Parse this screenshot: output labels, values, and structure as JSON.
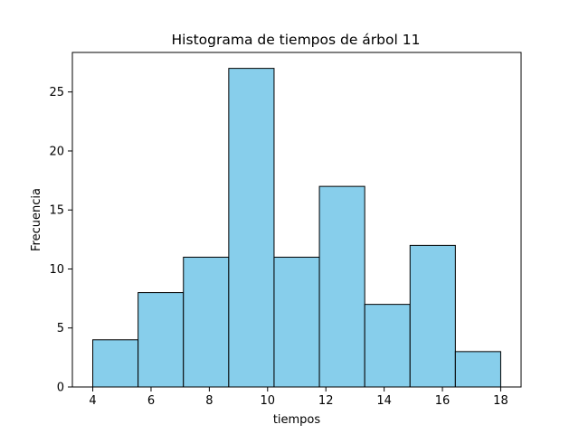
{
  "chart_data": {
    "type": "bar",
    "title": "Histograma de tiempos de árbol 11",
    "xlabel": "tiempos",
    "ylabel": "Frecuencia",
    "bin_edges": [
      4,
      5.5556,
      7.1111,
      8.6667,
      10.2222,
      11.7778,
      13.3333,
      14.8889,
      16.4444,
      18
    ],
    "values": [
      4,
      8,
      11,
      27,
      11,
      17,
      7,
      12,
      3
    ],
    "xlim": [
      3.3,
      18.7
    ],
    "ylim": [
      0,
      28.35
    ],
    "xticks": [
      4,
      6,
      8,
      10,
      12,
      14,
      16,
      18
    ],
    "xtick_labels": [
      "4",
      "6",
      "8",
      "10",
      "12",
      "14",
      "16",
      "18"
    ],
    "yticks": [
      0,
      5,
      10,
      15,
      20,
      25
    ],
    "ytick_labels": [
      "0",
      "5",
      "10",
      "15",
      "20",
      "25"
    ],
    "grid": false,
    "legend": false,
    "bar_color": "#87ceeb",
    "edge_color": "#000000"
  }
}
